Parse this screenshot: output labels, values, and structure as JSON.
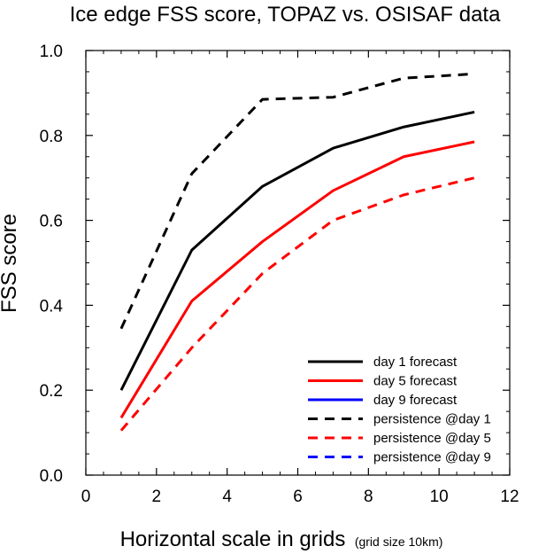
{
  "chart_data": {
    "type": "line",
    "title": "Ice edge FSS score, TOPAZ vs. OSISAF data",
    "xlabel": "Horizontal scale in grids",
    "xlabel_note": "(grid size 10km)",
    "ylabel": "FSS score",
    "xlim": [
      0,
      12
    ],
    "ylim": [
      0.0,
      1.0
    ],
    "x_ticks": [
      0,
      2,
      4,
      6,
      8,
      10,
      12
    ],
    "x_tick_labels": [
      "0",
      "2",
      "4",
      "6",
      "8",
      "10",
      "12"
    ],
    "y_ticks": [
      0.0,
      0.2,
      0.4,
      0.6,
      0.8,
      1.0
    ],
    "y_tick_labels": [
      "0.0",
      "0.2",
      "0.4",
      "0.6",
      "0.8",
      "1.0"
    ],
    "grid": false,
    "legend_position": "bottom-right",
    "series": [
      {
        "name": "day 1 forecast",
        "color": "#000000",
        "dash": "solid",
        "x": [
          1,
          3,
          5,
          7,
          9,
          11
        ],
        "y": [
          0.2,
          0.53,
          0.68,
          0.77,
          0.82,
          0.855
        ]
      },
      {
        "name": "day 5 forecast",
        "color": "#ff0000",
        "dash": "solid",
        "x": [
          1,
          3,
          5,
          7,
          9,
          11
        ],
        "y": [
          0.135,
          0.41,
          0.55,
          0.67,
          0.75,
          0.785
        ]
      },
      {
        "name": "day 9 forecast",
        "color": "#0000ff",
        "dash": "solid",
        "x": [],
        "y": []
      },
      {
        "name": "persistence @day 1",
        "color": "#000000",
        "dash": "dashed",
        "x": [
          1,
          3,
          5,
          7,
          9,
          11
        ],
        "y": [
          0.345,
          0.71,
          0.885,
          0.89,
          0.935,
          0.945
        ]
      },
      {
        "name": "persistence @day 5",
        "color": "#ff0000",
        "dash": "dashed",
        "x": [
          1,
          3,
          5,
          7,
          9,
          11
        ],
        "y": [
          0.105,
          0.3,
          0.475,
          0.6,
          0.66,
          0.7
        ]
      },
      {
        "name": "persistence @day 9",
        "color": "#0000ff",
        "dash": "dashed",
        "x": [],
        "y": []
      }
    ]
  }
}
